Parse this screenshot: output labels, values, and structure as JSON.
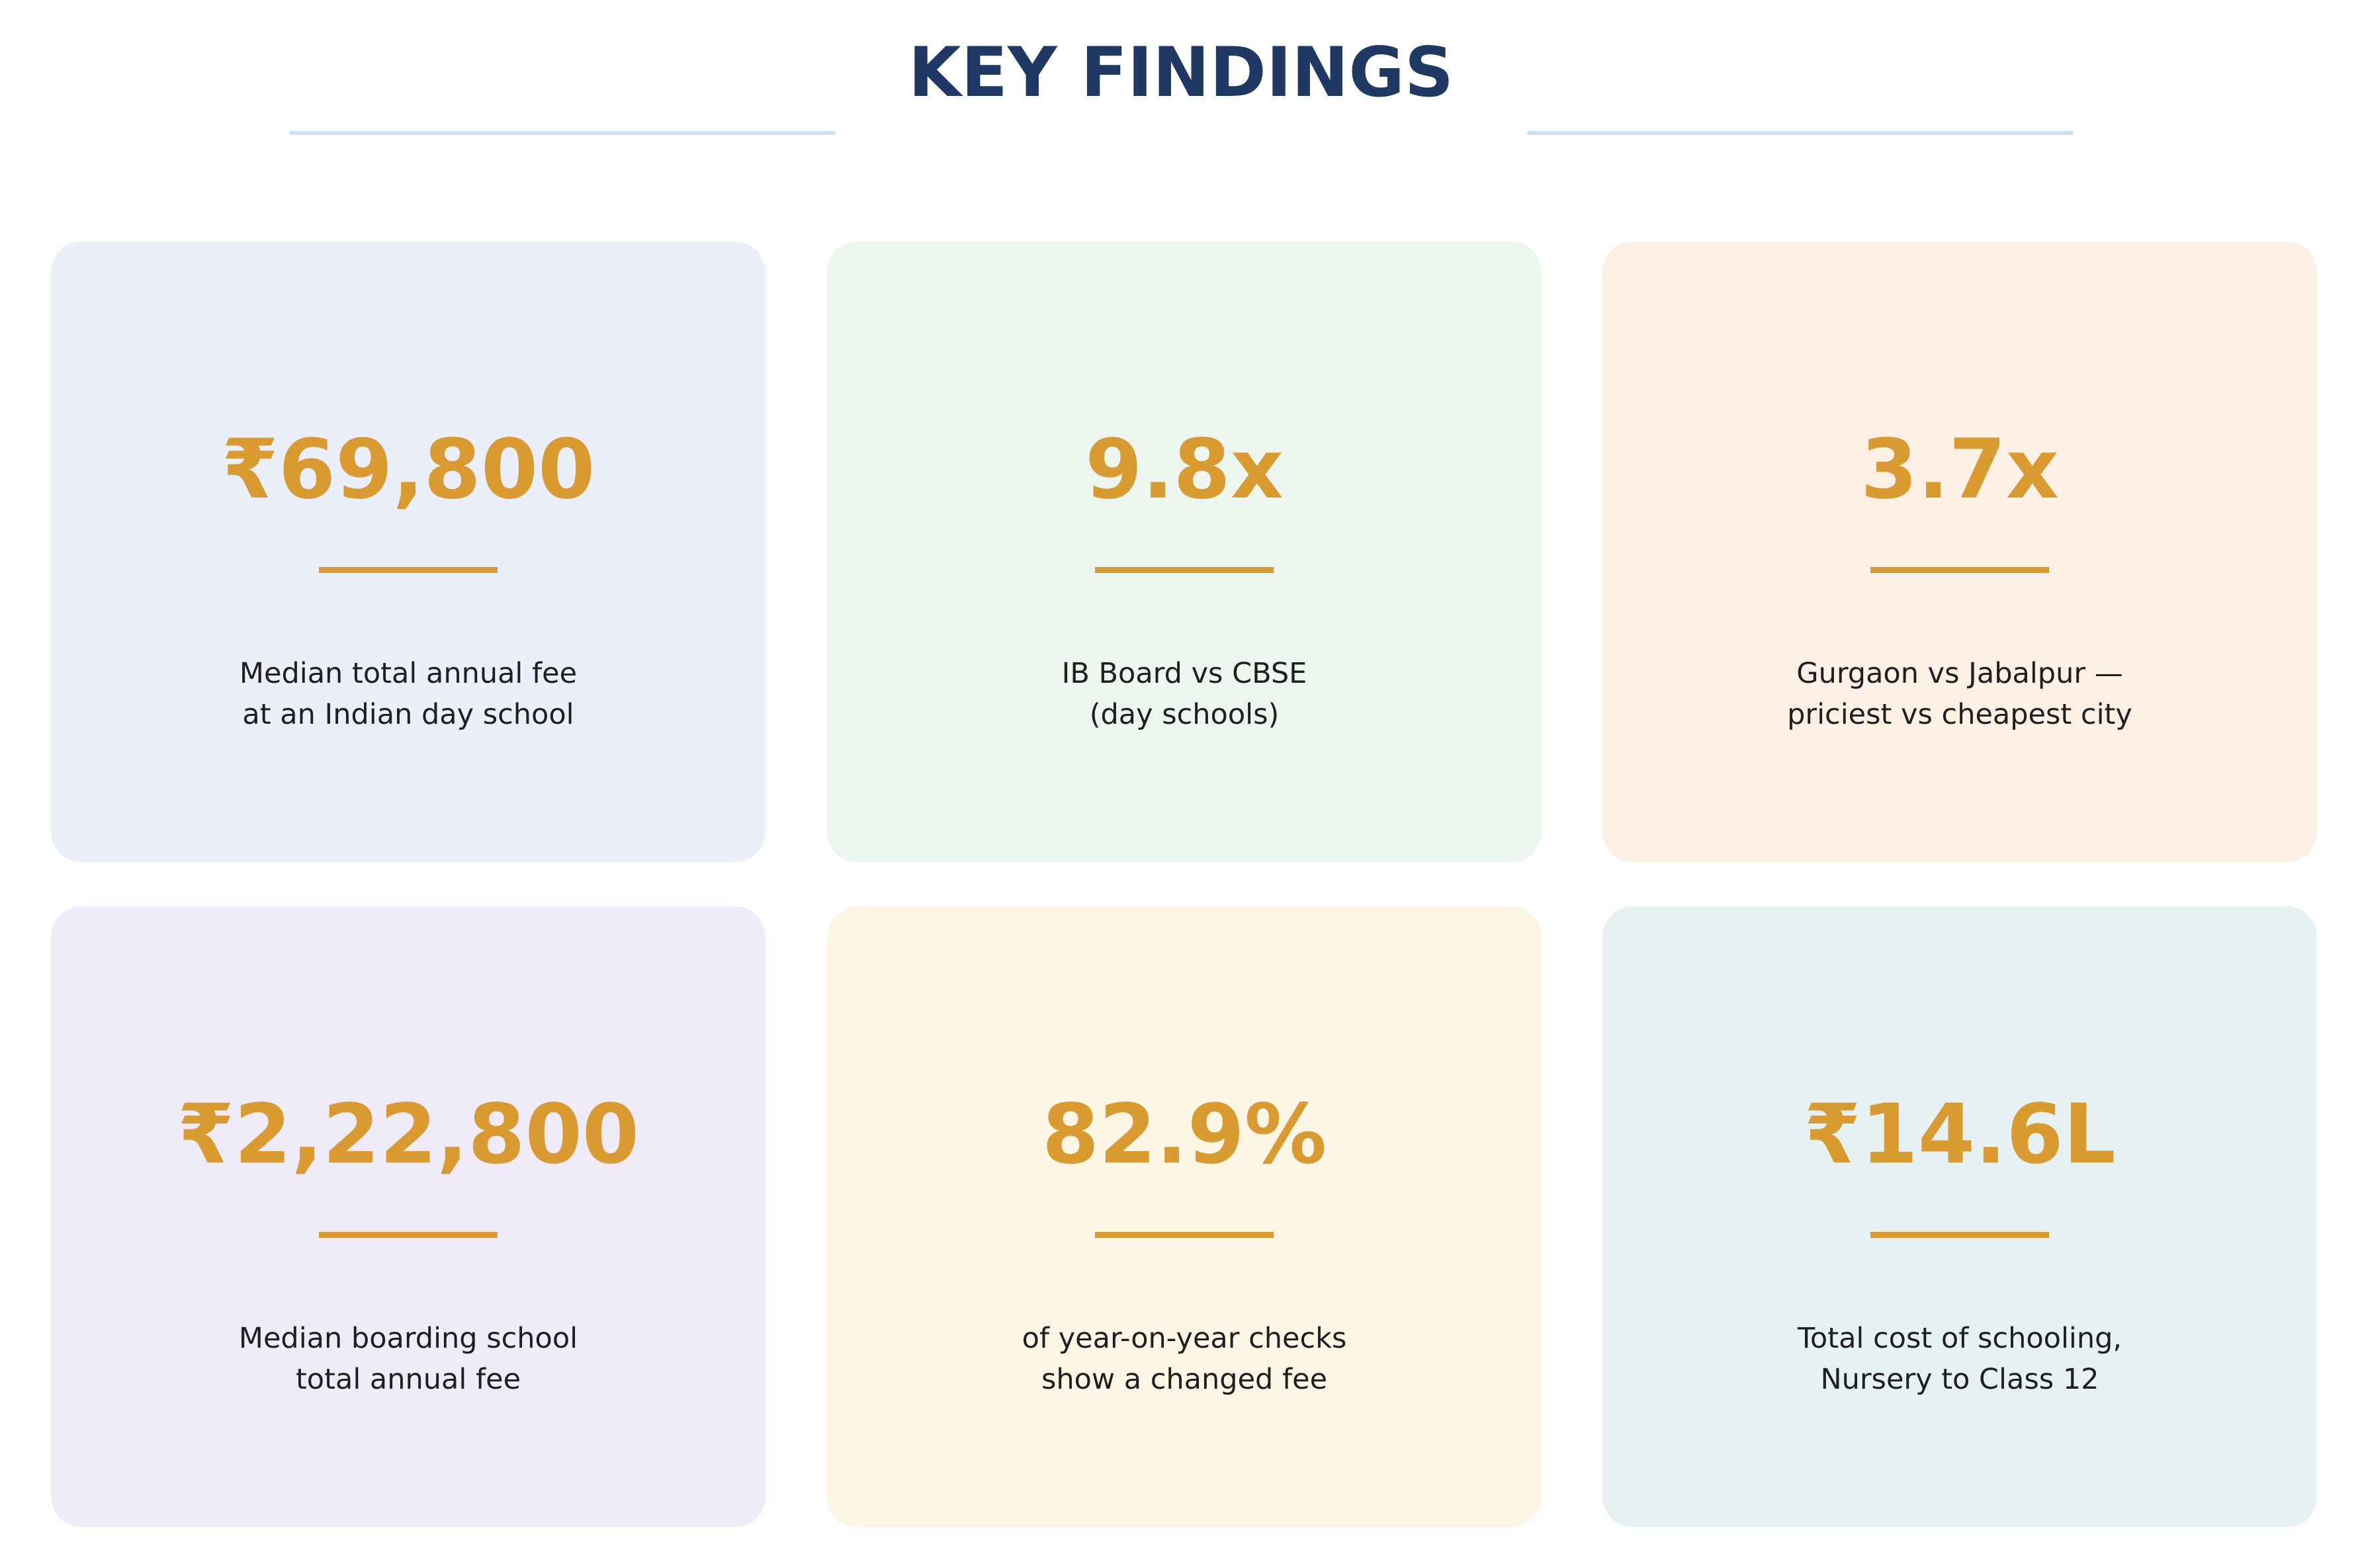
{
  "header": {
    "title": "KEY FINDINGS"
  },
  "colors": {
    "title": "#1f3864",
    "title_rule": "#cfdff2",
    "value": "#d99a30",
    "description": "#1f1f1f"
  },
  "cards": [
    {
      "value": "₹69,800",
      "desc_line1": "Median total annual fee",
      "desc_line2": "at an Indian day school",
      "background": "#eaeff9"
    },
    {
      "value": "9.8x",
      "desc_line1": "IB Board vs CBSE",
      "desc_line2": "(day schools)",
      "background": "#ecf5ee"
    },
    {
      "value": "3.7x",
      "desc_line1": "Gurgaon vs Jabalpur —",
      "desc_line2": "priciest vs cheapest city",
      "background": "#fcf0e5"
    },
    {
      "value": "₹2,22,800",
      "desc_line1": "Median boarding school",
      "desc_line2": "total annual fee",
      "background": "#efebf8"
    },
    {
      "value": "82.9%",
      "desc_line1": "of year-on-year checks",
      "desc_line2": "show a changed fee",
      "background": "#fdf6e4"
    },
    {
      "value": "₹14.6L",
      "desc_line1": "Total cost of schooling,",
      "desc_line2": "Nursery to Class 12",
      "background": "#e6f1f2"
    }
  ]
}
